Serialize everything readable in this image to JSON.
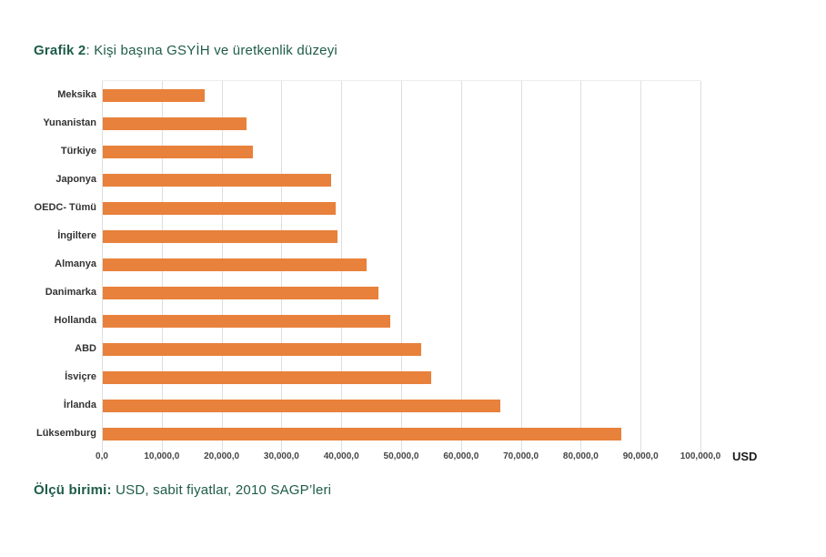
{
  "page": {
    "title": {
      "prefix": "Grafik 2",
      "rest": ": Kişi başına GSYİH ve üretkenlik düzeyi"
    },
    "caption": {
      "prefix": "Ölçü birimi:",
      "rest": " USD, sabit fiyatlar, 2010 SAGP’leri"
    },
    "axis_unit": "USD"
  },
  "chart_data": {
    "type": "bar",
    "orientation": "horizontal",
    "title": "Grafik 2: Kişi başına GSYİH ve üretkenlik düzeyi",
    "categories": [
      "Meksika",
      "Yunanistan",
      "Türkiye",
      "Japonya",
      "OEDC- Tümü",
      "İngiltere",
      "Almanya",
      "Danimarka",
      "Hollanda",
      "ABD",
      "İsviçre",
      "İrlanda",
      "Lüksemburg"
    ],
    "values": [
      17000,
      24000,
      25000,
      38100,
      38900,
      39200,
      44000,
      46000,
      48000,
      53200,
      54900,
      66400,
      86700
    ],
    "xlabel": "USD",
    "ylabel": "",
    "xlim": [
      0,
      100000
    ],
    "xticks": [
      0,
      10000,
      20000,
      30000,
      40000,
      50000,
      60000,
      70000,
      80000,
      90000,
      100000
    ],
    "xtick_labels": [
      "0,0",
      "10,000,0",
      "20,000,0",
      "30,000,0",
      "40,000,0",
      "50,000,0",
      "60,000,0",
      "70,000,0",
      "80,000,0",
      "90,000,0",
      "100,000,0"
    ],
    "grid": true,
    "legend": false,
    "bar_color": "#E8813B",
    "note": "Ölçü birimi: USD, sabit fiyatlar, 2010 SAGP’leri"
  },
  "colors": {
    "title_green": "#1E5C49",
    "bar_orange": "#E8813B",
    "gridline": "#DCDFE2",
    "label_dark": "#333333"
  }
}
